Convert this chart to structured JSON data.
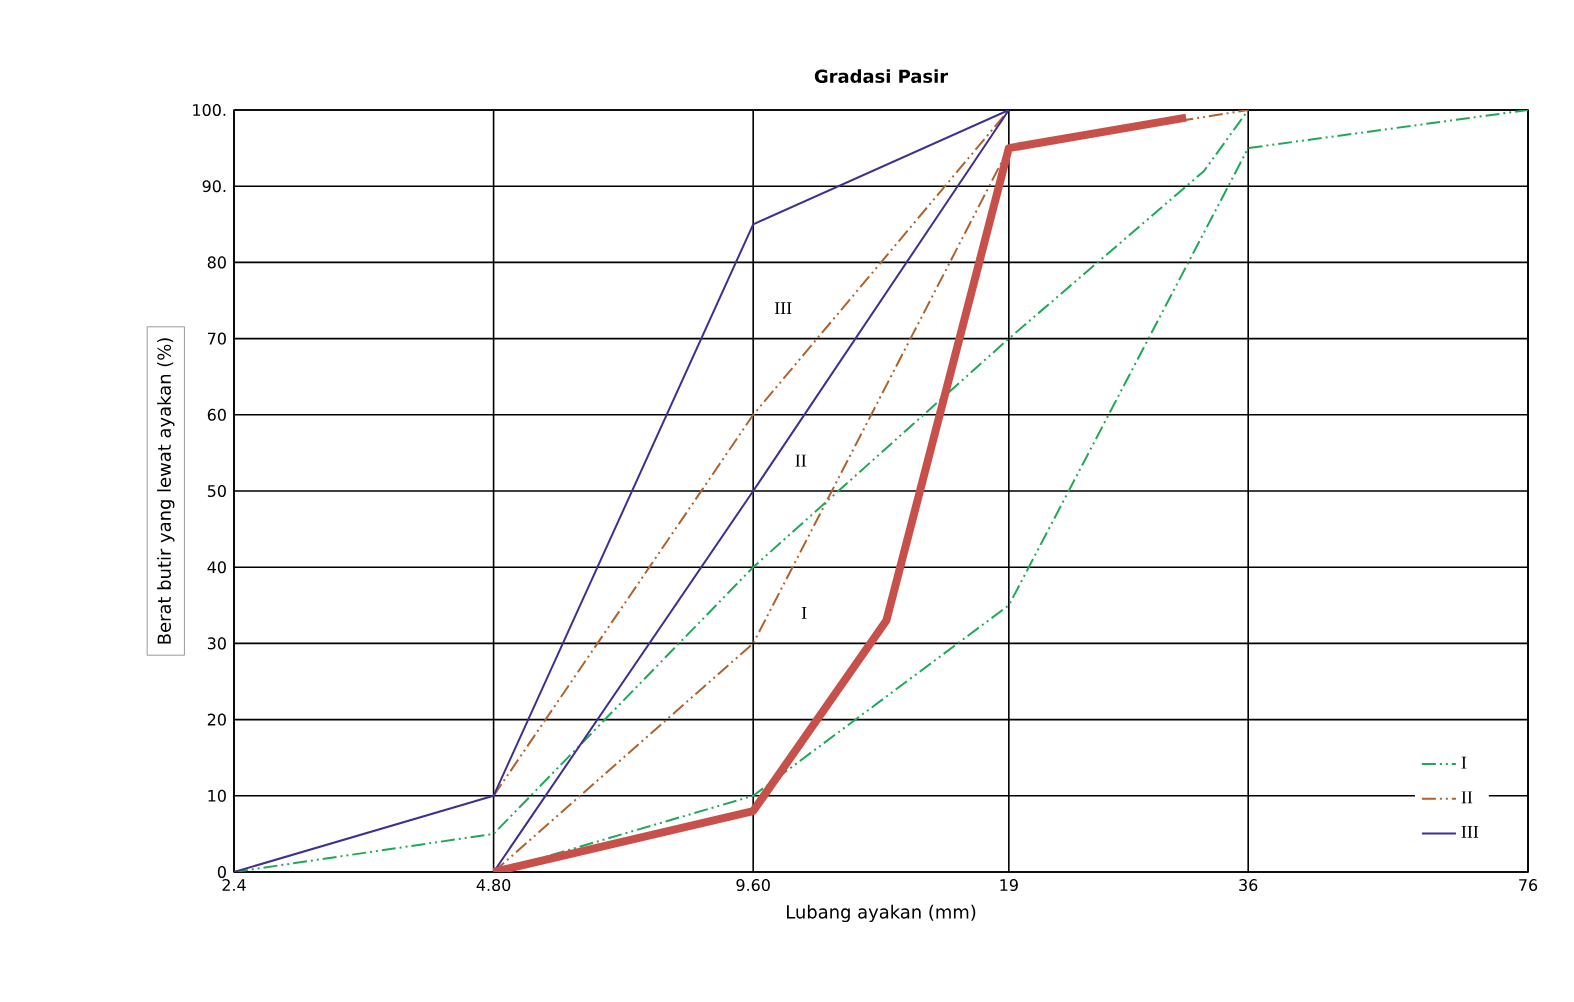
{
  "chart_data": {
    "type": "line",
    "title": "Gradasi Pasir",
    "xlabel": "Lubang ayakan (mm)",
    "ylabel": "Berat butir yang lewat ayakan (%)",
    "log": "x",
    "xlim": [
      2.4,
      76
    ],
    "ylim": [
      0,
      100
    ],
    "xticks": [
      2.4,
      {
        "value": 4.8,
        "label": "4.80"
      },
      {
        "value": 9.6,
        "label": "9.60"
      },
      19,
      36,
      76
    ],
    "yticks": [
      0,
      10,
      20,
      30,
      40,
      50,
      60,
      70,
      80,
      {
        "value": 90,
        "label": "90."
      },
      {
        "value": 100,
        "label": "100."
      }
    ],
    "grid": true,
    "legend": "bottom right",
    "series": [
      {
        "name": "I",
        "color": "#1fa85a",
        "line_style": "dashed",
        "x": [
          2.4,
          4.8,
          9.6,
          19,
          32,
          36
        ],
        "values": [
          0,
          5,
          40,
          70,
          92,
          100
        ]
      },
      {
        "color": "#1fa85a",
        "line_style": "dashed",
        "x": [
          4.8,
          9.6,
          19,
          36,
          76
        ],
        "values": [
          0,
          10,
          35,
          95,
          100
        ]
      },
      {
        "name": "II",
        "color": "#b0622a",
        "line_style": "dashed",
        "x": [
          4.8,
          9.6,
          19
        ],
        "values": [
          10,
          60,
          100
        ]
      },
      {
        "color": "#b0622a",
        "line_style": "dashed",
        "x": [
          4.8,
          9.6,
          19,
          36
        ],
        "values": [
          0,
          30,
          95,
          100
        ]
      },
      {
        "name": "III",
        "color": "#3f2f8f",
        "line_style": "solid",
        "x": [
          2.4,
          4.8,
          9.6,
          19
        ],
        "values": [
          0,
          10,
          85,
          100
        ]
      },
      {
        "color": "#3f2f8f",
        "line_style": "solid",
        "x": [
          4.8,
          9.6,
          19
        ],
        "values": [
          0,
          50,
          100
        ]
      },
      {
        "color": "#c8504b",
        "line_style": "solid",
        "x": [
          4.8,
          9.6,
          13.7,
          19,
          30.5
        ],
        "values": [
          0,
          8,
          33,
          95,
          99
        ]
      }
    ],
    "annotations": [
      {
        "text": "III",
        "x": 10.4,
        "y": 74
      },
      {
        "text": "II",
        "x": 10.9,
        "y": 54
      },
      {
        "text": "I",
        "x": 11.0,
        "y": 34
      }
    ]
  }
}
